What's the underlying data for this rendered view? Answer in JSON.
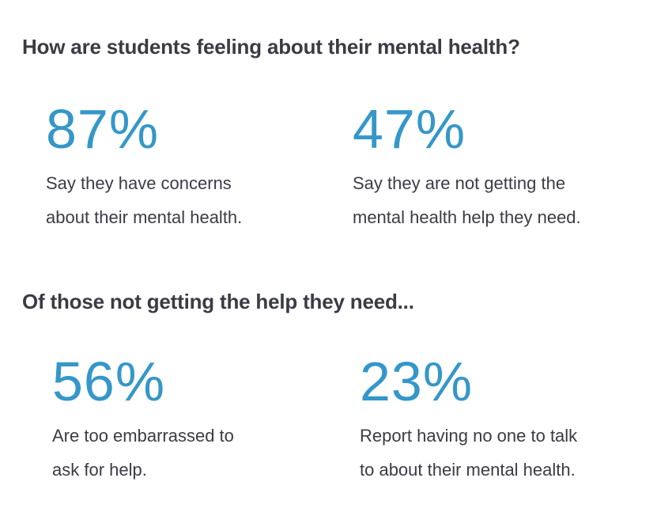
{
  "sections": [
    {
      "heading": "How are students feeling about their mental health?",
      "stats": [
        {
          "value": "87%",
          "lines": [
            "Say they have concerns",
            "about their mental health."
          ]
        },
        {
          "value": "47%",
          "lines": [
            "Say they are not getting the",
            "mental health help they need."
          ]
        }
      ]
    },
    {
      "heading": "Of those not getting the help they need...",
      "stats": [
        {
          "value": "56%",
          "lines": [
            "Are too embarrassed to",
            "ask for help."
          ]
        },
        {
          "value": "23%",
          "lines": [
            "Report having no one to talk",
            "to about their mental health."
          ]
        }
      ]
    }
  ]
}
